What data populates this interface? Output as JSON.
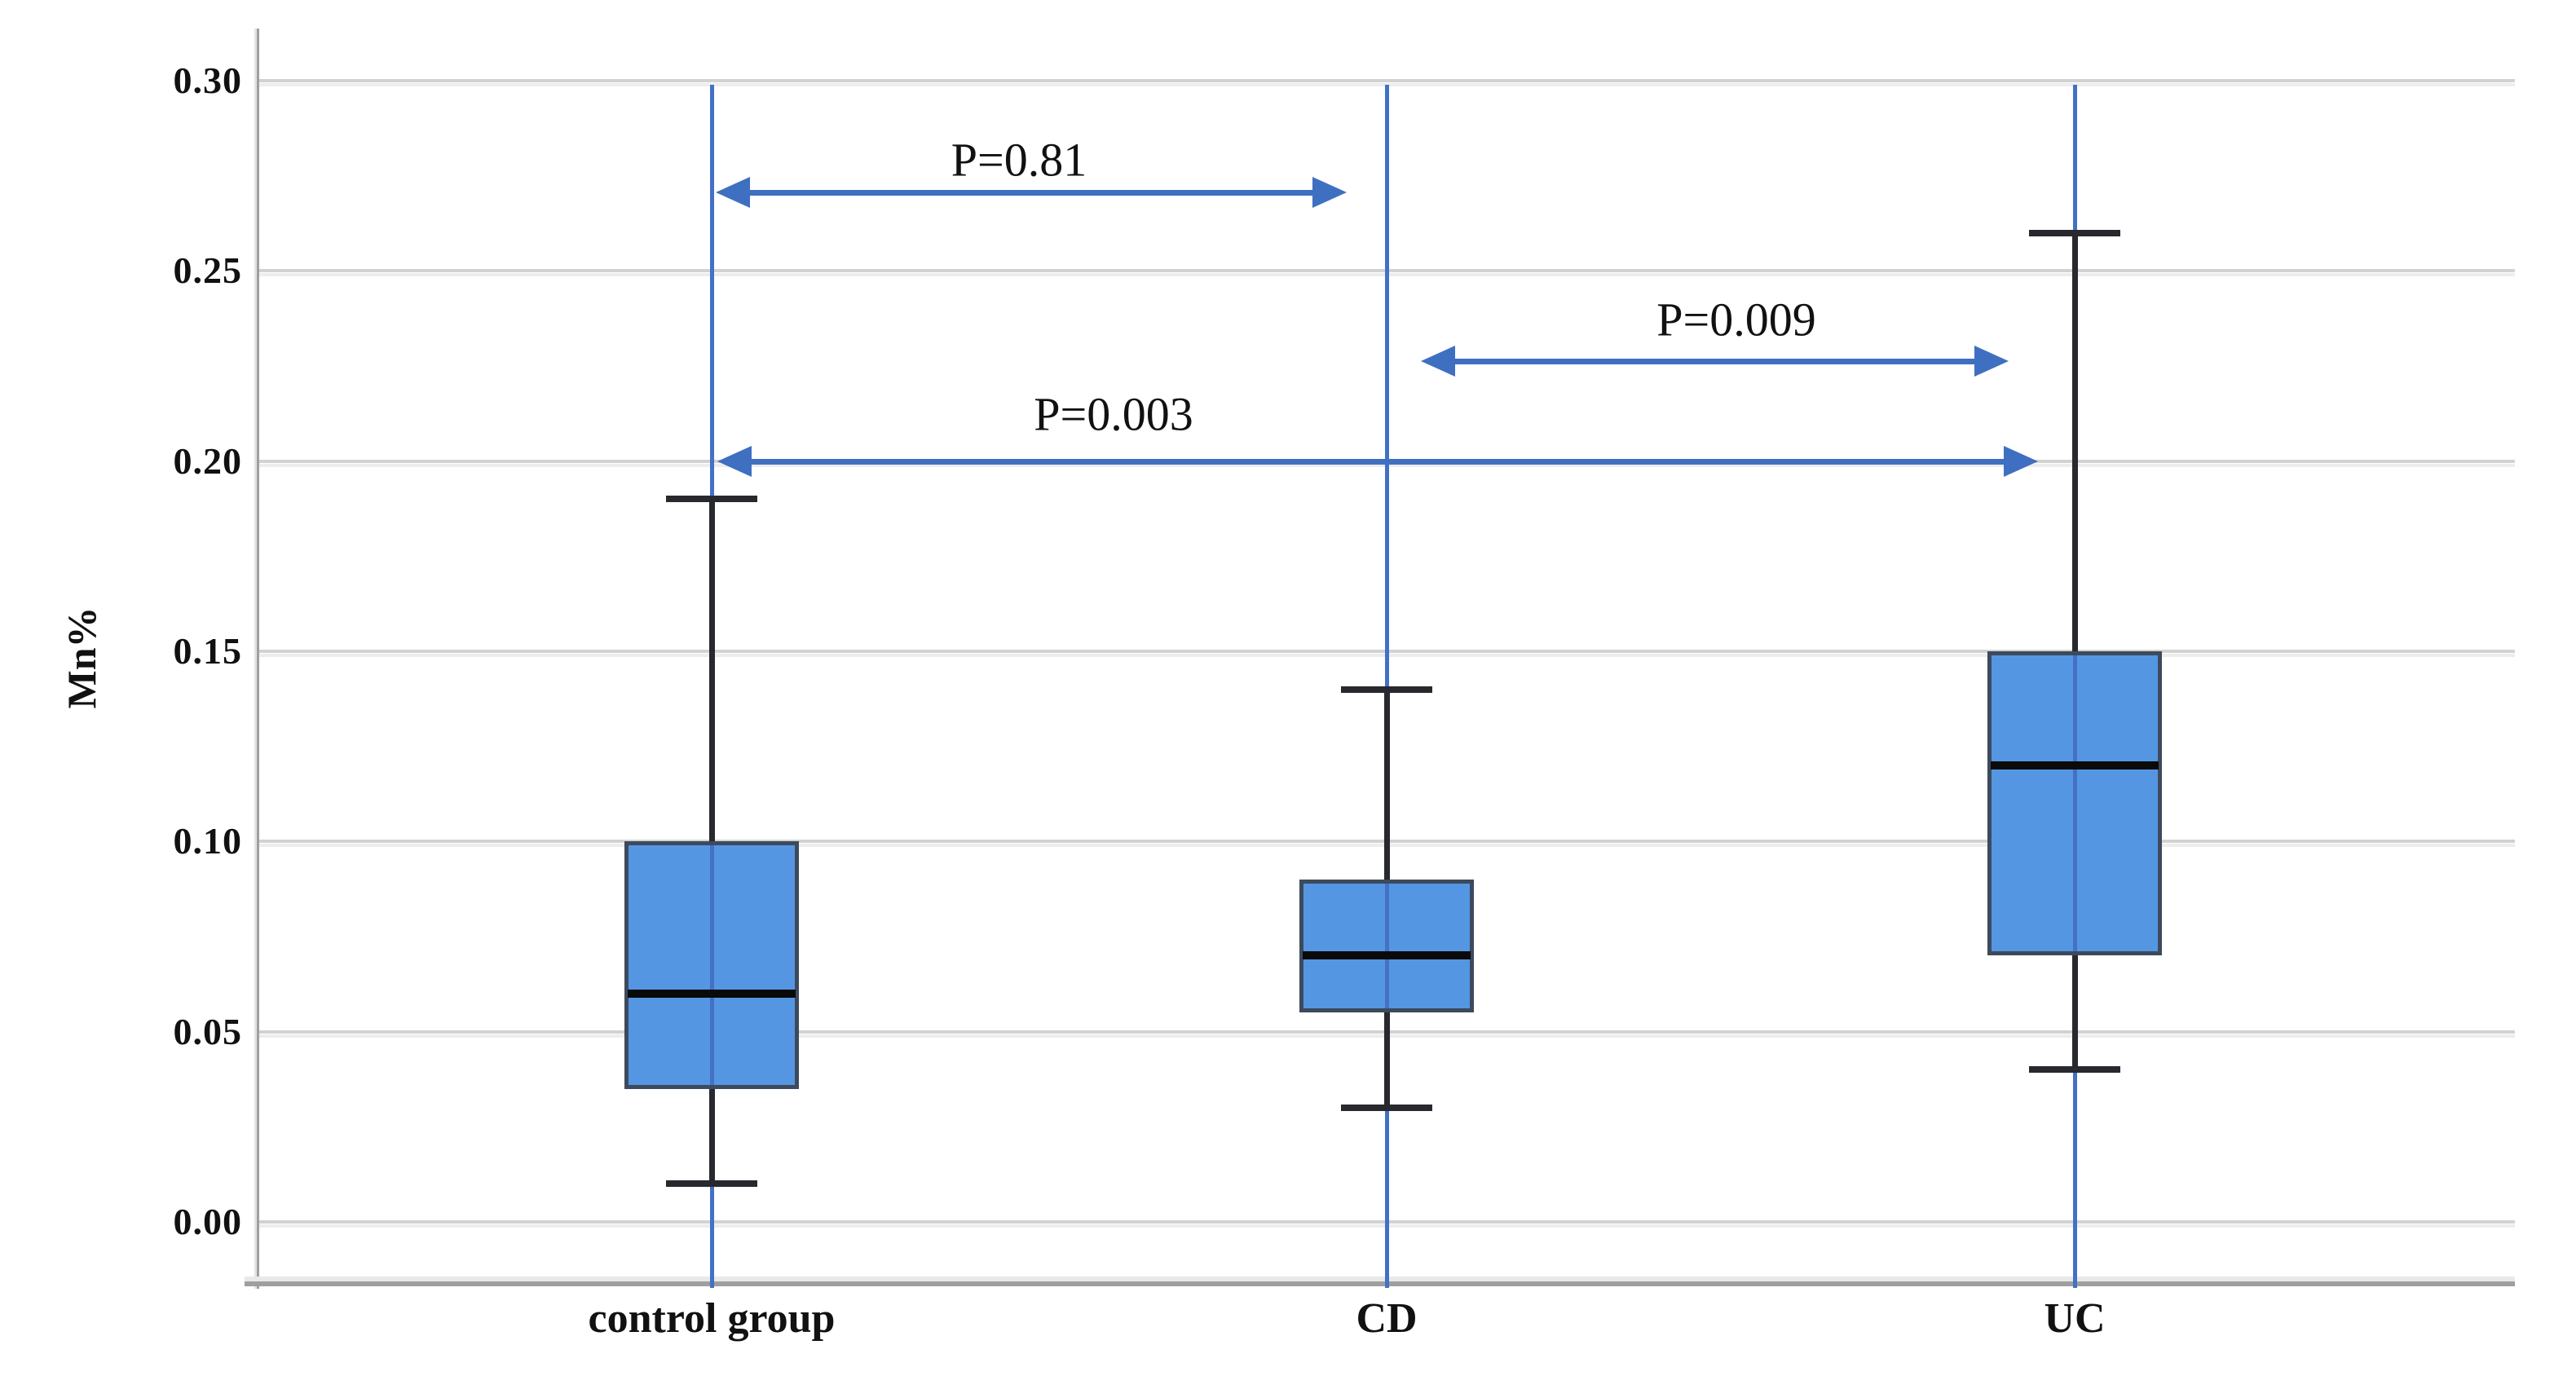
{
  "chart_data": {
    "type": "box",
    "title": "",
    "xlabel": "",
    "ylabel": "Mn%",
    "categories": [
      "control group",
      "CD",
      "UC"
    ],
    "yticks": [
      "0.30",
      "0.25",
      "0.20",
      "0.15",
      "0.10",
      "0.05",
      "0.00"
    ],
    "ytick_values": [
      0.3,
      0.25,
      0.2,
      0.15,
      0.1,
      0.05,
      0.0
    ],
    "ylim": [
      -0.017,
      0.309
    ],
    "grid": "horizontal",
    "legend": "none",
    "series": [
      {
        "category": "control group",
        "min": 0.01,
        "q1": 0.035,
        "median": 0.06,
        "q3": 0.1,
        "max": 0.19
      },
      {
        "category": "CD",
        "min": 0.03,
        "q1": 0.055,
        "median": 0.07,
        "q3": 0.09,
        "max": 0.14
      },
      {
        "category": "UC",
        "min": 0.04,
        "q1": 0.07,
        "median": 0.12,
        "q3": 0.15,
        "max": 0.26
      }
    ],
    "annotations": [
      {
        "label": "P=0.81",
        "between": [
          "control group",
          "CD"
        ],
        "y": 0.271
      },
      {
        "label": "P=0.009",
        "between": [
          "CD",
          "UC"
        ],
        "y": 0.226
      },
      {
        "label": "P=0.003",
        "between": [
          "control group",
          "UC"
        ],
        "y": 0.2
      }
    ],
    "colors": {
      "box_fill": "#5596e3",
      "box_border": "#3d4a5c",
      "median": "#0a0a0a",
      "whisker": "#27292e",
      "category_line": "#4271c6",
      "arrow": "#3f6fc1",
      "gridline": "#d2d2d2",
      "gridline_shadow": "#ededed",
      "axis_line": "#9f9f9f",
      "text": "#111111",
      "background": "#ffffff"
    }
  }
}
